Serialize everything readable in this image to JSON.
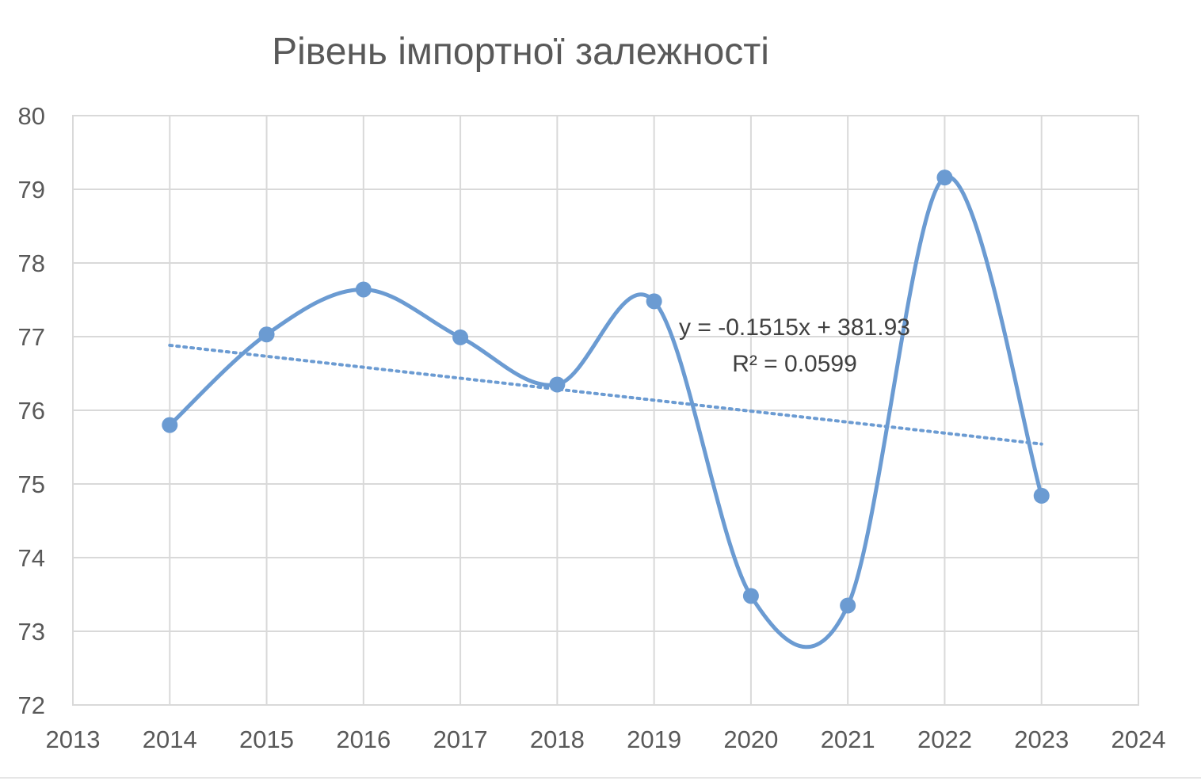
{
  "chart_data": {
    "type": "line",
    "title": "Рівень імпортної залежності",
    "x": [
      2014,
      2015,
      2016,
      2017,
      2018,
      2019,
      2020,
      2021,
      2022,
      2023
    ],
    "series": [
      {
        "values": [
          75.8,
          77.03,
          77.64,
          76.99,
          76.35,
          77.48,
          73.48,
          73.35,
          79.16,
          74.84
        ]
      }
    ],
    "xlim": [
      2013,
      2024
    ],
    "ylim": [
      72,
      80
    ],
    "xticks": [
      "2013",
      "2014",
      "2015",
      "2016",
      "2017",
      "2018",
      "2019",
      "2020",
      "2021",
      "2022",
      "2023",
      "2024"
    ],
    "yticks": [
      "72",
      "73",
      "74",
      "75",
      "76",
      "77",
      "78",
      "79",
      "80"
    ],
    "trendline": {
      "type": "linear",
      "style": "dotted",
      "equation": "y = -0.1515x + 381.93",
      "r_squared": "R² = 0.0599",
      "from": 2014,
      "to": 2023
    },
    "grid": true,
    "smooth": true,
    "legend": "none",
    "colors": {
      "series": "#6b9bd2",
      "grid": "#d9d9d9",
      "text": "#595959"
    }
  }
}
